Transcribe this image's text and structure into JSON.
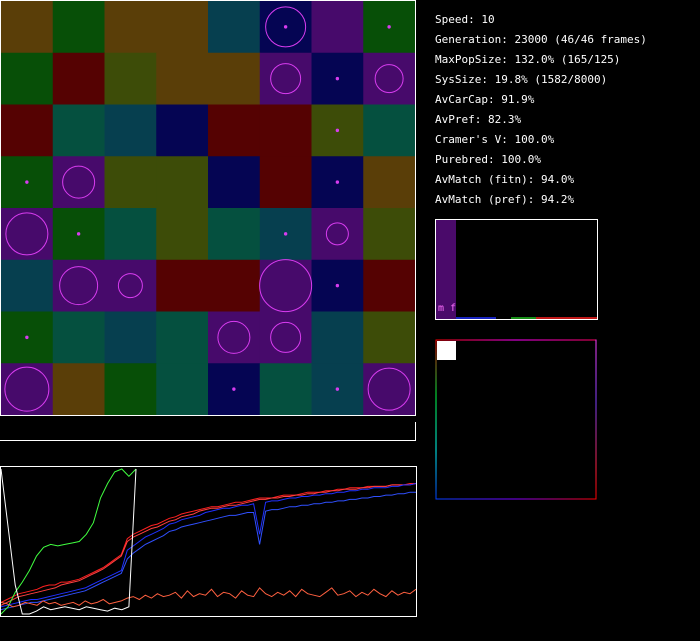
{
  "stats": {
    "speed": "Speed: 10",
    "generation": "Generation: 23000 (46/46 frames)",
    "max_pop_size": "MaxPopSize: 132.0% (165/125)",
    "sys_size": "SysSize: 19.8% (1582/8000)",
    "av_car_cap": "AvCarCap: 91.9%",
    "av_pref": "AvPref: 82.3%",
    "cramers_v": "Cramer's V: 100.0%",
    "purebred": "Purebred: 100.0%",
    "av_match_fitn": "AvMatch (fitn): 94.0%",
    "av_match_pref": "AvMatch (pref): 94.2%"
  },
  "histogram": {
    "label": "m f",
    "bar_color": "#4a0a6a"
  },
  "colors": {
    "brown": "#5a3e08",
    "green": "#074f07",
    "teal": "#063f4f",
    "navy": "#050553",
    "purple": "#470a6b",
    "red": "#550202",
    "olive": "#3d4c08",
    "sea": "#05503f",
    "circle": "#d83cf0"
  },
  "grid": {
    "rows": [
      [
        "brown",
        "green",
        "brown",
        "brown",
        "teal",
        "navy",
        "purple",
        "green"
      ],
      [
        "green",
        "red",
        "olive",
        "brown",
        "brown",
        "purple",
        "navy",
        "purple"
      ],
      [
        "red",
        "sea",
        "teal",
        "navy",
        "red",
        "red",
        "olive",
        "sea"
      ],
      [
        "green",
        "purple",
        "olive",
        "olive",
        "navy",
        "red",
        "navy",
        "brown"
      ],
      [
        "purple",
        "green",
        "sea",
        "olive",
        "sea",
        "teal",
        "purple",
        "olive"
      ],
      [
        "teal",
        "purple",
        "purple",
        "red",
        "red",
        "purple",
        "navy",
        "red"
      ],
      [
        "green",
        "sea",
        "teal",
        "sea",
        "purple",
        "purple",
        "teal",
        "olive"
      ],
      [
        "purple",
        "brown",
        "green",
        "sea",
        "navy",
        "sea",
        "teal",
        "purple"
      ]
    ],
    "circles": [
      [
        0,
        5,
        20
      ],
      [
        0,
        5,
        0
      ],
      [
        0,
        7,
        0
      ],
      [
        1,
        5,
        15
      ],
      [
        1,
        6,
        0
      ],
      [
        1,
        7,
        14
      ],
      [
        2,
        6,
        0
      ],
      [
        3,
        0,
        0
      ],
      [
        3,
        1,
        16
      ],
      [
        3,
        6,
        0
      ],
      [
        4,
        0,
        21
      ],
      [
        4,
        1,
        0
      ],
      [
        4,
        5,
        0
      ],
      [
        4,
        6,
        11
      ],
      [
        5,
        1,
        19
      ],
      [
        5,
        2,
        12
      ],
      [
        5,
        5,
        26
      ],
      [
        5,
        6,
        0
      ],
      [
        6,
        0,
        0
      ],
      [
        6,
        4,
        16
      ],
      [
        6,
        5,
        15
      ],
      [
        7,
        0,
        22
      ],
      [
        7,
        4,
        0
      ],
      [
        7,
        6,
        0
      ],
      [
        7,
        7,
        21
      ]
    ]
  },
  "chart_data": {
    "type": "line",
    "series": [
      {
        "color": "#ff2020",
        "values": [
          8,
          10,
          12,
          14,
          15,
          16,
          17,
          19,
          20,
          20,
          22,
          22,
          23,
          24,
          26,
          28,
          30,
          32,
          35,
          38,
          41,
          52,
          55,
          57,
          59,
          61,
          62,
          64,
          66,
          67,
          69,
          70,
          71,
          72,
          73,
          74,
          74,
          75,
          76,
          77,
          77,
          78,
          79,
          80,
          80,
          80,
          81,
          82,
          82,
          82,
          83,
          84,
          84,
          84,
          85,
          85,
          86,
          86,
          87,
          87,
          87,
          88,
          88,
          88,
          88,
          89,
          89,
          89,
          90,
          90
        ]
      },
      {
        "color": "#ff4040",
        "values": [
          6,
          8,
          10,
          12,
          13,
          14,
          15,
          16,
          17,
          18,
          20,
          21,
          22,
          23,
          25,
          27,
          29,
          31,
          34,
          37,
          40,
          50,
          53,
          55,
          57,
          59,
          60,
          62,
          64,
          65,
          67,
          68,
          69,
          71,
          72,
          73,
          73,
          74,
          75,
          75,
          76,
          77,
          78,
          79,
          79,
          80,
          80,
          81,
          81,
          82,
          82,
          83,
          83,
          84,
          84,
          85,
          85,
          86,
          86,
          86,
          87,
          87,
          88,
          88,
          88,
          89,
          89,
          89,
          89,
          90
        ]
      },
      {
        "color": "#2030ff",
        "values": [
          5,
          6,
          7,
          8,
          9,
          10,
          10,
          11,
          12,
          13,
          14,
          15,
          16,
          17,
          18,
          20,
          22,
          24,
          26,
          28,
          30,
          44,
          47,
          50,
          53,
          55,
          57,
          59,
          62,
          63,
          65,
          66,
          67,
          68,
          70,
          71,
          72,
          73,
          73,
          74,
          75,
          75,
          76,
          55,
          77,
          78,
          78,
          79,
          80,
          80,
          81,
          81,
          82,
          82,
          83,
          83,
          84,
          84,
          85,
          85,
          86,
          86,
          87,
          87,
          87,
          88,
          88,
          89,
          89,
          90
        ]
      },
      {
        "color": "#3050ff",
        "values": [
          3,
          4,
          5,
          6,
          7,
          8,
          8,
          9,
          10,
          11,
          12,
          13,
          14,
          15,
          16,
          18,
          20,
          22,
          24,
          26,
          28,
          38,
          42,
          45,
          48,
          50,
          52,
          54,
          57,
          58,
          60,
          61,
          62,
          63,
          64,
          65,
          66,
          67,
          68,
          68,
          69,
          70,
          70,
          48,
          71,
          72,
          72,
          73,
          74,
          74,
          75,
          75,
          76,
          76,
          77,
          77,
          78,
          78,
          79,
          79,
          80,
          80,
          81,
          81,
          82,
          82,
          83,
          83,
          84,
          84
        ]
      },
      {
        "color": "#40ff40",
        "values": [
          0,
          5,
          15,
          22,
          30,
          40,
          46,
          48,
          47,
          48,
          49,
          50,
          55,
          63,
          80,
          90,
          98,
          100,
          95,
          100
        ]
      },
      {
        "color": "#ff6040",
        "values": [
          8,
          7,
          5,
          6,
          8,
          7,
          6,
          9,
          7,
          8,
          6,
          7,
          8,
          6,
          9,
          7,
          8,
          10,
          7,
          8,
          9,
          11,
          12,
          10,
          13,
          11,
          14,
          12,
          13,
          15,
          11,
          16,
          12,
          14,
          13,
          17,
          12,
          15,
          14,
          11,
          16,
          13,
          12,
          18,
          14,
          12,
          15,
          13,
          16,
          12,
          17,
          14,
          13,
          12,
          15,
          18,
          13,
          14,
          16,
          12,
          15,
          13,
          17,
          14,
          12,
          16,
          13,
          15,
          14,
          17
        ]
      },
      {
        "color": "#ffffff",
        "values": [
          100,
          60,
          20,
          0,
          0,
          2,
          5,
          3,
          4,
          5,
          4,
          3,
          5,
          4,
          3,
          2,
          4,
          3,
          5,
          100
        ]
      }
    ]
  }
}
